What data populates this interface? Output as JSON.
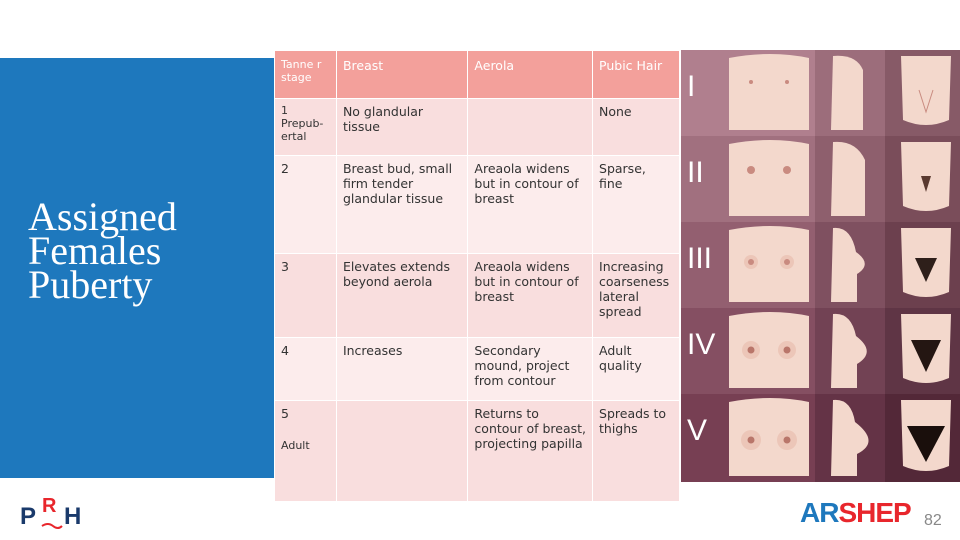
{
  "slide": {
    "title_lines": [
      "Assigned",
      "Females",
      "Puberty"
    ],
    "page_number": "82"
  },
  "table": {
    "headers": [
      "Tanne r stage",
      "Breast",
      "Aerola",
      "Pubic Hair"
    ],
    "rows": [
      {
        "stage": "1",
        "stage_note": "Prepub-ertal",
        "breast": "No glandular tissue",
        "aerola": "",
        "pubic": "None"
      },
      {
        "stage": "2",
        "stage_note": "",
        "breast": "Breast bud, small firm tender glandular tissue",
        "aerola": "Areaola widens but in contour of breast",
        "pubic": "Sparse, fine"
      },
      {
        "stage": "3",
        "stage_note": "",
        "breast": "Elevates extends beyond aerola",
        "aerola": "Areaola widens but in contour of breast",
        "pubic": "Increasing coarseness lateral spread"
      },
      {
        "stage": "4",
        "stage_note": "",
        "breast": "Increases",
        "aerola": "Secondary mound, project from contour",
        "pubic": "Adult quality"
      },
      {
        "stage": "5",
        "stage_note": "Adult",
        "breast": "",
        "aerola": "Returns to contour of breast, projecting papilla",
        "pubic": "Spreads to thighs"
      }
    ]
  },
  "figure": {
    "stages": [
      "I",
      "II",
      "III",
      "IV",
      "V"
    ],
    "colors": {
      "panel": "#1e78bd",
      "header": "#f3a09b",
      "row_light": "#fcecec",
      "row_dark": "#f9dede",
      "skin": "#f0d4c8"
    }
  },
  "logos": {
    "left": "PRH",
    "right_part1": "AR",
    "right_part2": "SHEP"
  }
}
